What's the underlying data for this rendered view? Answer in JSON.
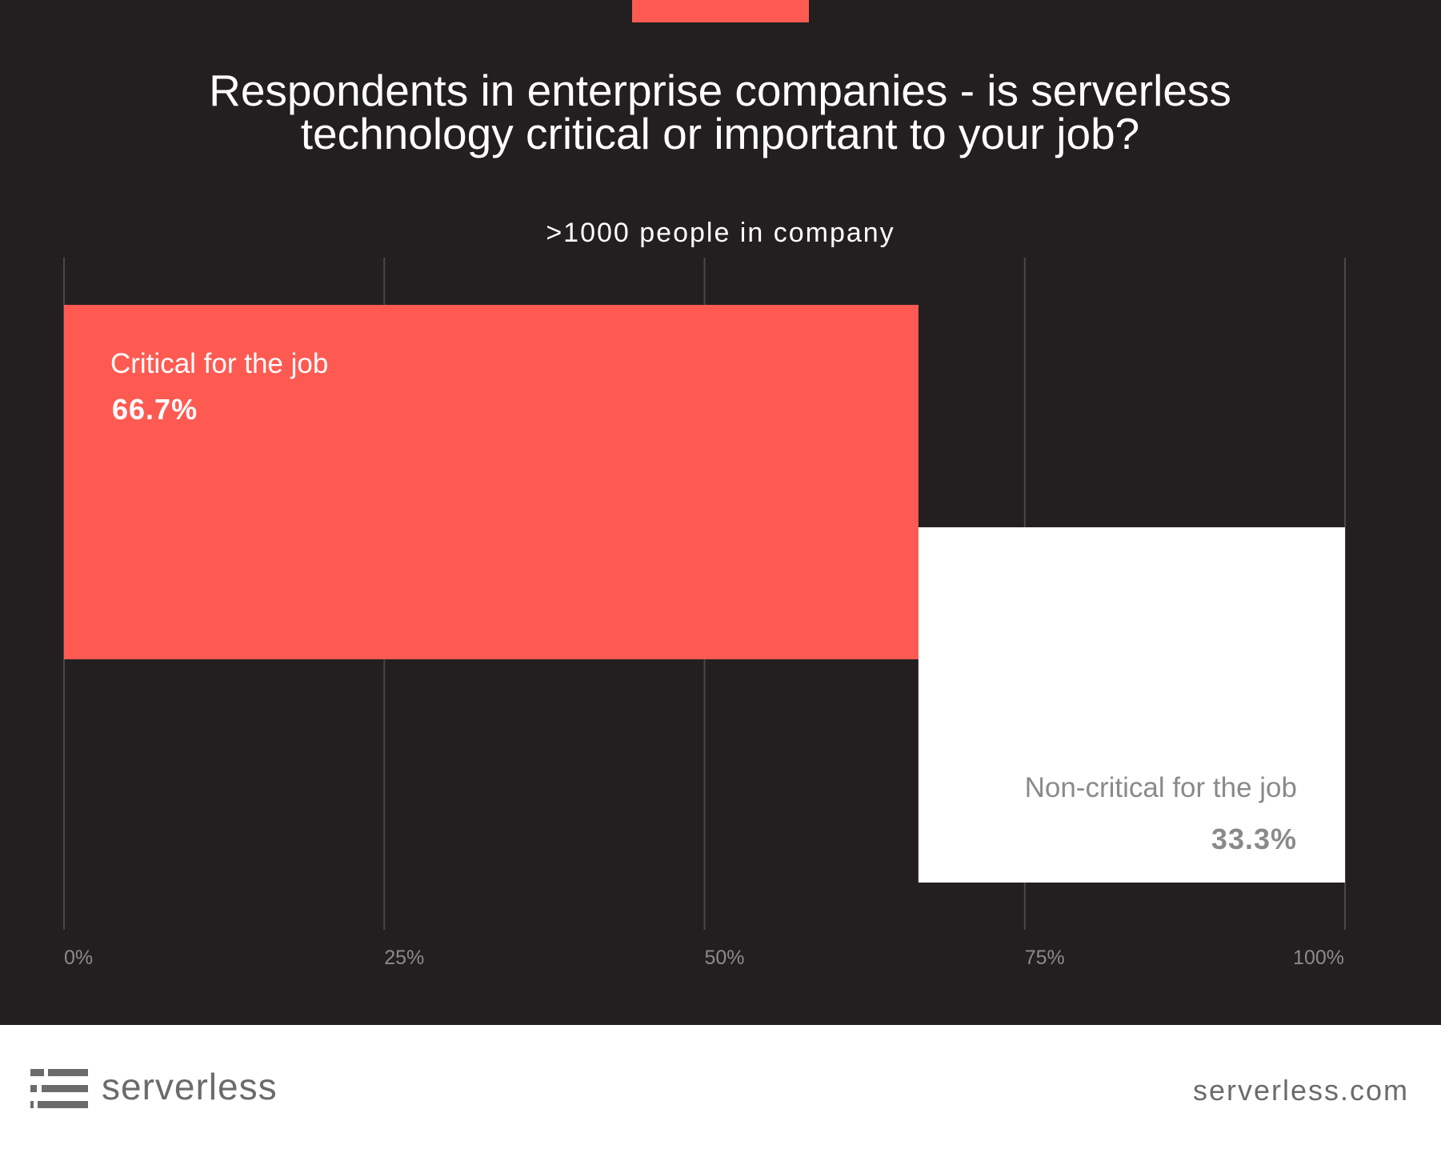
{
  "chart_data": {
    "type": "bar",
    "orientation": "horizontal-stacked",
    "title": "Respondents in enterprise companies - is serverless technology critical or important to your job?",
    "subtitle": ">1000 people in company",
    "xlim": [
      0,
      100
    ],
    "xticks": [
      "0%",
      "25%",
      "50%",
      "75%",
      "100%"
    ],
    "grid": true,
    "series": [
      {
        "name": "Critical for the job",
        "value": 66.7,
        "value_label": "66.7%",
        "color": "#ff5a52"
      },
      {
        "name": "Non-critical for the job",
        "value": 33.3,
        "value_label": "33.3%",
        "color": "#ffffff"
      }
    ]
  },
  "colors": {
    "background": "#231f20",
    "accent": "#ff5a52",
    "gridline": "#4a4748",
    "tick_label": "#8c8a8a",
    "footer_text": "#6b6b6b"
  },
  "footer": {
    "brand_name": "serverless",
    "url": "serverless.com",
    "logo_icon": "serverless-logo-icon"
  }
}
